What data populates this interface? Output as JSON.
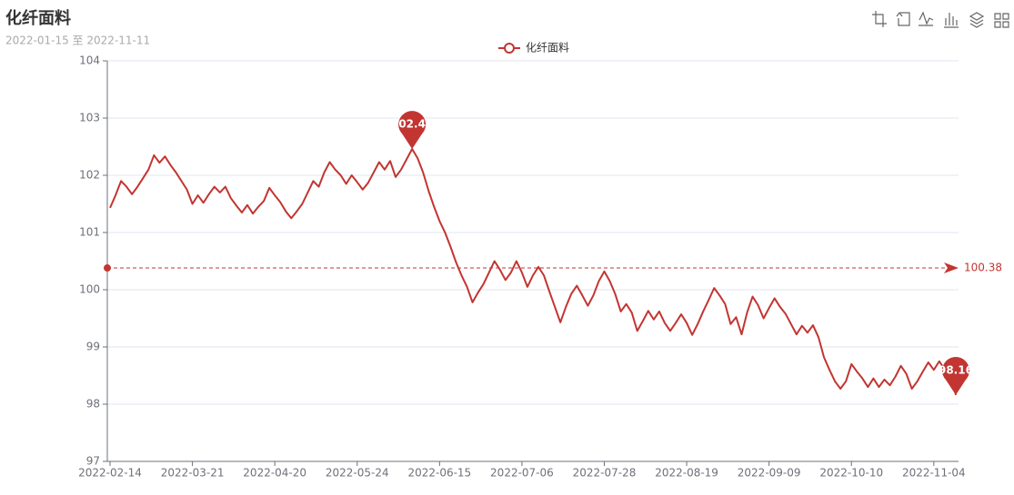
{
  "chart_data": {
    "type": "line",
    "title": "化纤面料",
    "subtitle": "2022-01-15 至 2022-11-11",
    "categories": [
      "2022-02-14",
      null,
      null,
      null,
      null,
      null,
      null,
      null,
      null,
      null,
      null,
      null,
      null,
      null,
      null,
      "2022-03-21",
      null,
      null,
      null,
      null,
      null,
      null,
      null,
      null,
      null,
      null,
      null,
      null,
      null,
      null,
      "2022-04-20",
      null,
      null,
      null,
      null,
      null,
      null,
      null,
      null,
      null,
      null,
      null,
      null,
      null,
      null,
      "2022-05-24",
      null,
      null,
      null,
      null,
      null,
      null,
      null,
      null,
      null,
      null,
      null,
      null,
      null,
      null,
      "2022-06-15",
      null,
      null,
      null,
      null,
      null,
      null,
      null,
      null,
      null,
      null,
      null,
      null,
      null,
      null,
      "2022-07-06",
      null,
      null,
      null,
      null,
      null,
      null,
      null,
      null,
      null,
      null,
      null,
      null,
      null,
      null,
      "2022-07-28",
      null,
      null,
      null,
      null,
      null,
      null,
      null,
      null,
      null,
      null,
      null,
      null,
      null,
      null,
      "2022-08-19",
      null,
      null,
      null,
      null,
      null,
      null,
      null,
      null,
      null,
      null,
      null,
      null,
      null,
      null,
      "2022-09-09",
      null,
      null,
      null,
      null,
      null,
      null,
      null,
      null,
      null,
      null,
      null,
      null,
      null,
      null,
      "2022-10-10",
      null,
      null,
      null,
      null,
      null,
      null,
      null,
      null,
      null,
      null,
      null,
      null,
      null,
      null,
      "2022-11-04",
      null,
      null,
      null,
      null
    ],
    "series": [
      {
        "name": "化纤面料",
        "color": "#c23531",
        "values": [
          101.43,
          101.65,
          101.9,
          101.8,
          101.67,
          101.8,
          101.95,
          102.1,
          102.35,
          102.22,
          102.33,
          102.18,
          102.05,
          101.9,
          101.75,
          101.5,
          101.65,
          101.52,
          101.67,
          101.8,
          101.7,
          101.8,
          101.6,
          101.47,
          101.35,
          101.48,
          101.33,
          101.45,
          101.55,
          101.78,
          101.65,
          101.53,
          101.37,
          101.25,
          101.37,
          101.5,
          101.7,
          101.9,
          101.8,
          102.05,
          102.23,
          102.1,
          102.0,
          101.85,
          102.0,
          101.88,
          101.75,
          101.87,
          102.05,
          102.23,
          102.1,
          102.25,
          101.97,
          102.1,
          102.28,
          102.46,
          102.3,
          102.05,
          101.73,
          101.45,
          101.2,
          101.0,
          100.75,
          100.48,
          100.25,
          100.05,
          99.78,
          99.95,
          100.1,
          100.3,
          100.5,
          100.35,
          100.17,
          100.3,
          100.5,
          100.3,
          100.05,
          100.25,
          100.4,
          100.25,
          99.97,
          99.7,
          99.43,
          99.7,
          99.93,
          100.07,
          99.9,
          99.72,
          99.9,
          100.15,
          100.32,
          100.15,
          99.92,
          99.62,
          99.75,
          99.6,
          99.28,
          99.45,
          99.63,
          99.48,
          99.62,
          99.42,
          99.28,
          99.42,
          99.57,
          99.42,
          99.21,
          99.4,
          99.62,
          99.82,
          100.03,
          99.9,
          99.75,
          99.4,
          99.52,
          99.22,
          99.6,
          99.88,
          99.73,
          99.5,
          99.68,
          99.85,
          99.7,
          99.58,
          99.4,
          99.22,
          99.37,
          99.25,
          99.38,
          99.17,
          98.82,
          98.6,
          98.4,
          98.27,
          98.4,
          98.7,
          98.57,
          98.45,
          98.3,
          98.45,
          98.3,
          98.43,
          98.33,
          98.48,
          98.67,
          98.53,
          98.27,
          98.4,
          98.57,
          98.73,
          98.6,
          98.75,
          98.6,
          98.65,
          98.16
        ]
      }
    ],
    "average_line": 100.38,
    "ylim": [
      97,
      104
    ],
    "yticks": [
      97,
      98,
      99,
      100,
      101,
      102,
      103,
      104
    ],
    "grid": true
  }
}
